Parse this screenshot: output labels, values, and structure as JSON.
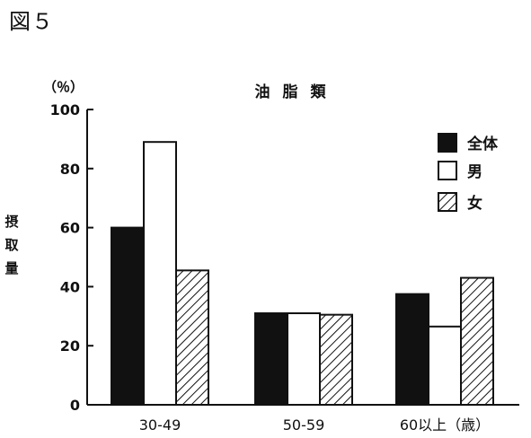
{
  "figure_label": "図５",
  "chart_data": {
    "type": "bar",
    "title": "油脂類",
    "unit": "（％）",
    "ylabel": "摂取量",
    "xlabel": "",
    "categories": [
      "30-49",
      "50-59",
      "60以上（歳）"
    ],
    "series": [
      {
        "name": "全体",
        "values": [
          60,
          31,
          37.5
        ],
        "fill": "solid"
      },
      {
        "name": "男",
        "values": [
          89,
          31,
          26.5
        ],
        "fill": "empty"
      },
      {
        "name": "女",
        "values": [
          45.5,
          30.5,
          43
        ],
        "fill": "hatch"
      }
    ],
    "ylim": [
      0,
      100
    ],
    "yticks": [
      "0",
      "20",
      "40",
      "60",
      "80",
      "100"
    ],
    "grid": false,
    "legend_position": "top-right",
    "colors": {
      "ink": "#111111",
      "background": "#ffffff"
    }
  }
}
